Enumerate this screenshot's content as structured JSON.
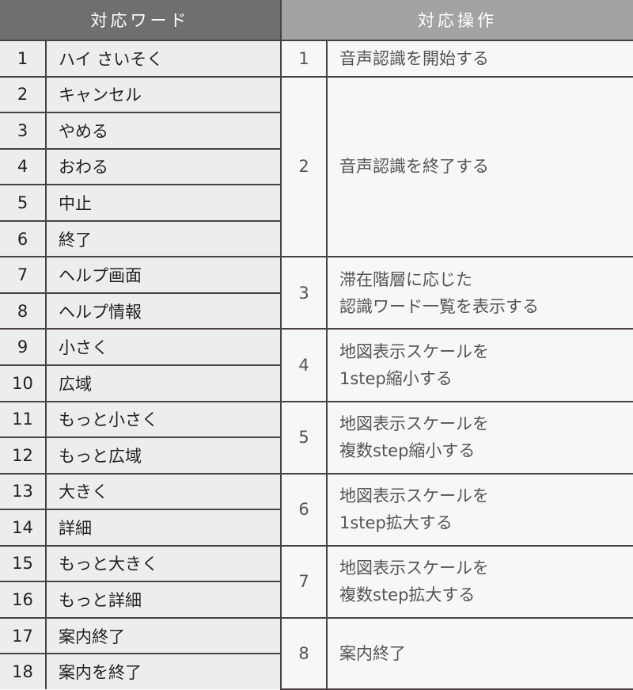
{
  "headers": {
    "words": "対応ワード",
    "actions": "対応操作"
  },
  "words": [
    {
      "no": "1",
      "word": "ハイ さいそく"
    },
    {
      "no": "2",
      "word": "キャンセル"
    },
    {
      "no": "3",
      "word": "やめる"
    },
    {
      "no": "4",
      "word": "おわる"
    },
    {
      "no": "5",
      "word": "中止"
    },
    {
      "no": "6",
      "word": "終了"
    },
    {
      "no": "7",
      "word": "ヘルプ画面"
    },
    {
      "no": "8",
      "word": "ヘルプ情報"
    },
    {
      "no": "9",
      "word": "小さく"
    },
    {
      "no": "10",
      "word": "広域"
    },
    {
      "no": "11",
      "word": "もっと小さく"
    },
    {
      "no": "12",
      "word": "もっと広域"
    },
    {
      "no": "13",
      "word": "大きく"
    },
    {
      "no": "14",
      "word": "詳細"
    },
    {
      "no": "15",
      "word": "もっと大きく"
    },
    {
      "no": "16",
      "word": "もっと詳細"
    },
    {
      "no": "17",
      "word": "案内終了"
    },
    {
      "no": "18",
      "word": "案内を終了"
    }
  ],
  "actions": [
    {
      "no": "1",
      "lines": [
        "音声認識を開始する"
      ]
    },
    {
      "no": "2",
      "lines": [
        "音声認識を終了する"
      ]
    },
    {
      "no": "3",
      "lines": [
        "滞在階層に応じた",
        "認識ワード一覧を表示する"
      ]
    },
    {
      "no": "4",
      "lines": [
        "地図表示スケールを",
        "1step縮小する"
      ]
    },
    {
      "no": "5",
      "lines": [
        "地図表示スケールを",
        "複数step縮小する"
      ]
    },
    {
      "no": "6",
      "lines": [
        "地図表示スケールを",
        "1step拡大する"
      ]
    },
    {
      "no": "7",
      "lines": [
        "地図表示スケールを",
        "複数step拡大する"
      ]
    },
    {
      "no": "8",
      "lines": [
        "案内終了"
      ]
    }
  ],
  "colors": {
    "header_left": "#6f6f6f",
    "header_right": "#a3a3a3",
    "border": "#4a4242"
  }
}
